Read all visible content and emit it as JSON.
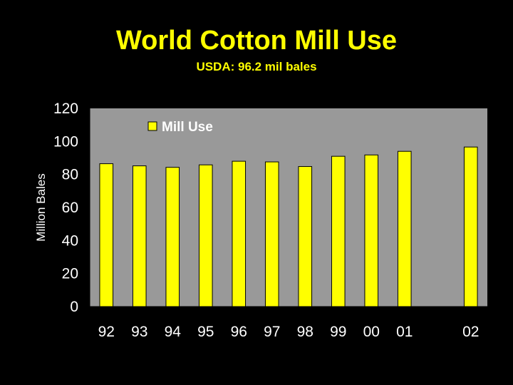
{
  "title": "World Cotton Mill Use",
  "subtitle": "USDA: 96.2 mil bales",
  "colors": {
    "background": "#000000",
    "plot_area": "#999999",
    "bar": "#ffff00",
    "text": "#ffffff",
    "title": "#ffff00"
  },
  "chart_data": {
    "type": "bar",
    "title": "World Cotton Mill Use",
    "subtitle": "USDA: 96.2 mil bales",
    "xlabel": "",
    "ylabel": "Million Bales",
    "ylim": [
      0,
      120
    ],
    "yticks": [
      0,
      20,
      40,
      60,
      80,
      100,
      120
    ],
    "categories": [
      "92",
      "93",
      "94",
      "95",
      "96",
      "97",
      "98",
      "99",
      "00",
      "01",
      "",
      "02"
    ],
    "series": [
      {
        "name": "Mill Use",
        "values": [
          86.5,
          85.2,
          84.3,
          85.8,
          88.0,
          87.6,
          84.8,
          91.0,
          91.8,
          94.0,
          null,
          96.6
        ]
      }
    ],
    "grid": false,
    "legend": "top-left"
  }
}
